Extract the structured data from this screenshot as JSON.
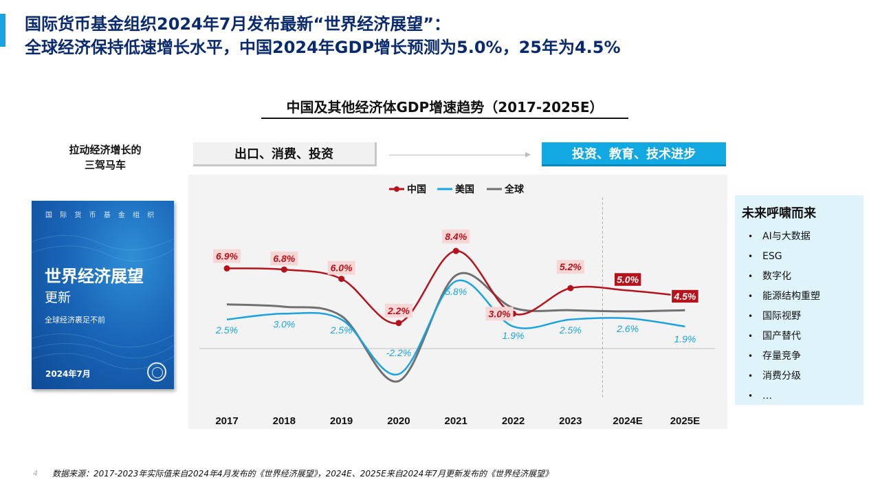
{
  "header": {
    "title_line1": "国际货币基金组织2024年7月发布最新“世界经济展望”：",
    "title_line2": "全球经济保持低速增长水平，中国2024年GDP增长预测为5.0%，25年为4.5%"
  },
  "drivers": {
    "label_line1": "拉动经济增长的",
    "label_line2": "三驾马车",
    "old": "出口、消费、投资",
    "new": "投资、教育、技术进步"
  },
  "report_cover": {
    "org": "国 际 货 币 基 金 组 织",
    "title": "世界经济展望",
    "subtitle": "更新",
    "tagline": "全球经济裹足不前",
    "date": "2024年7月"
  },
  "future": {
    "title": "未来呼啸而来",
    "items": [
      "AI与大数据",
      "ESG",
      "数字化",
      "能源结构重塑",
      "国际视野",
      "国产替代",
      "存量竞争",
      "消费分级",
      "…"
    ]
  },
  "footer": {
    "page": "4",
    "source": "数据来源：2017-2023年实际值来自2024年4月发布的《世界经济展望》，2024E、2025E来自2024年7月更新发布的《世界经济展望》"
  },
  "chart_data": {
    "type": "line",
    "title": "中国及其他经济体GDP增速趋势（2017-2025E）",
    "categories": [
      "2017",
      "2018",
      "2019",
      "2020",
      "2021",
      "2022",
      "2023",
      "2024E",
      "2025E"
    ],
    "series": [
      {
        "name": "中国",
        "color": "#b5121b",
        "values": [
          6.9,
          6.8,
          6.0,
          2.2,
          8.4,
          3.0,
          5.2,
          5.0,
          4.5
        ],
        "labels": [
          "6.9%",
          "6.8%",
          "6.0%",
          "2.2%",
          "8.4%",
          "3.0%",
          "5.2%",
          "5.0%",
          "4.5%"
        ]
      },
      {
        "name": "美国",
        "color": "#1aa3e0",
        "values": [
          2.5,
          3.0,
          2.5,
          -2.2,
          5.8,
          1.9,
          2.5,
          2.6,
          1.9
        ],
        "labels": [
          "2.5%",
          "3.0%",
          "2.5%",
          "-2.2%",
          "5.8%",
          "1.9%",
          "2.5%",
          "2.6%",
          "1.9%"
        ]
      },
      {
        "name": "全球",
        "color": "#707070",
        "values": [
          3.8,
          3.6,
          2.8,
          -2.8,
          6.3,
          3.5,
          3.3,
          3.2,
          3.3
        ]
      }
    ],
    "ylim": [
      -4,
      10
    ],
    "forecast_from": "2024E",
    "legend": "top-center",
    "grid": false
  }
}
